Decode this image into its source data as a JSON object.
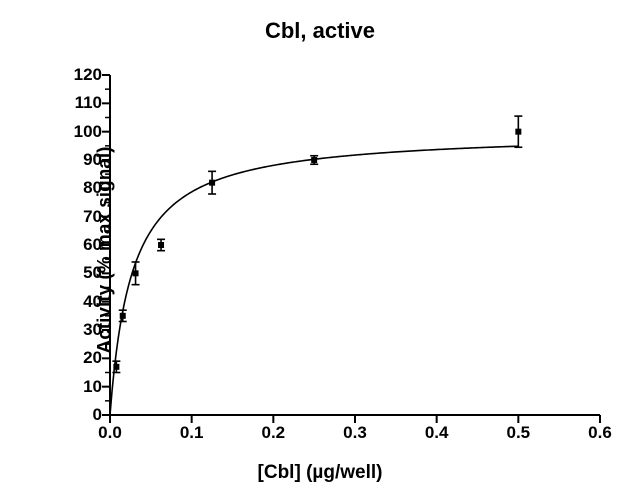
{
  "chart": {
    "type": "scatter-with-fit",
    "title": "Cbl, active",
    "title_fontsize": 22,
    "xlabel": "[Cbl] (µg/well)",
    "ylabel": "Activity (% max signal)",
    "label_fontsize": 19,
    "tick_fontsize": 17,
    "xlim": [
      0.0,
      0.6
    ],
    "ylim": [
      0,
      120
    ],
    "xticks": [
      0.0,
      0.1,
      0.2,
      0.3,
      0.4,
      0.5,
      0.6
    ],
    "yticks": [
      0,
      10,
      20,
      30,
      40,
      50,
      60,
      70,
      80,
      90,
      100,
      110,
      120
    ],
    "ytick_minor_positions": [
      5,
      15,
      25,
      35,
      45,
      55,
      65,
      75,
      85,
      95,
      105,
      115
    ],
    "tick_len_major": 8,
    "tick_len_minor": 5,
    "axis_color": "#000000",
    "axis_width": 2,
    "curve": {
      "color": "#000000",
      "width": 1.6,
      "vmax": 100,
      "km": 0.027
    },
    "points": [
      {
        "x": 0.0078,
        "y": 17,
        "err": 2
      },
      {
        "x": 0.0156,
        "y": 35,
        "err": 2
      },
      {
        "x": 0.0313,
        "y": 50,
        "err": 4
      },
      {
        "x": 0.0625,
        "y": 60,
        "err": 2
      },
      {
        "x": 0.125,
        "y": 82,
        "err": 4
      },
      {
        "x": 0.25,
        "y": 90,
        "err": 1.5
      },
      {
        "x": 0.5,
        "y": 100,
        "err": 5.5
      }
    ],
    "marker": {
      "shape": "square",
      "size": 6,
      "color": "#000000"
    },
    "errorbar": {
      "color": "#000000",
      "width": 1.6,
      "cap": 8
    },
    "background_color": "#ffffff"
  }
}
